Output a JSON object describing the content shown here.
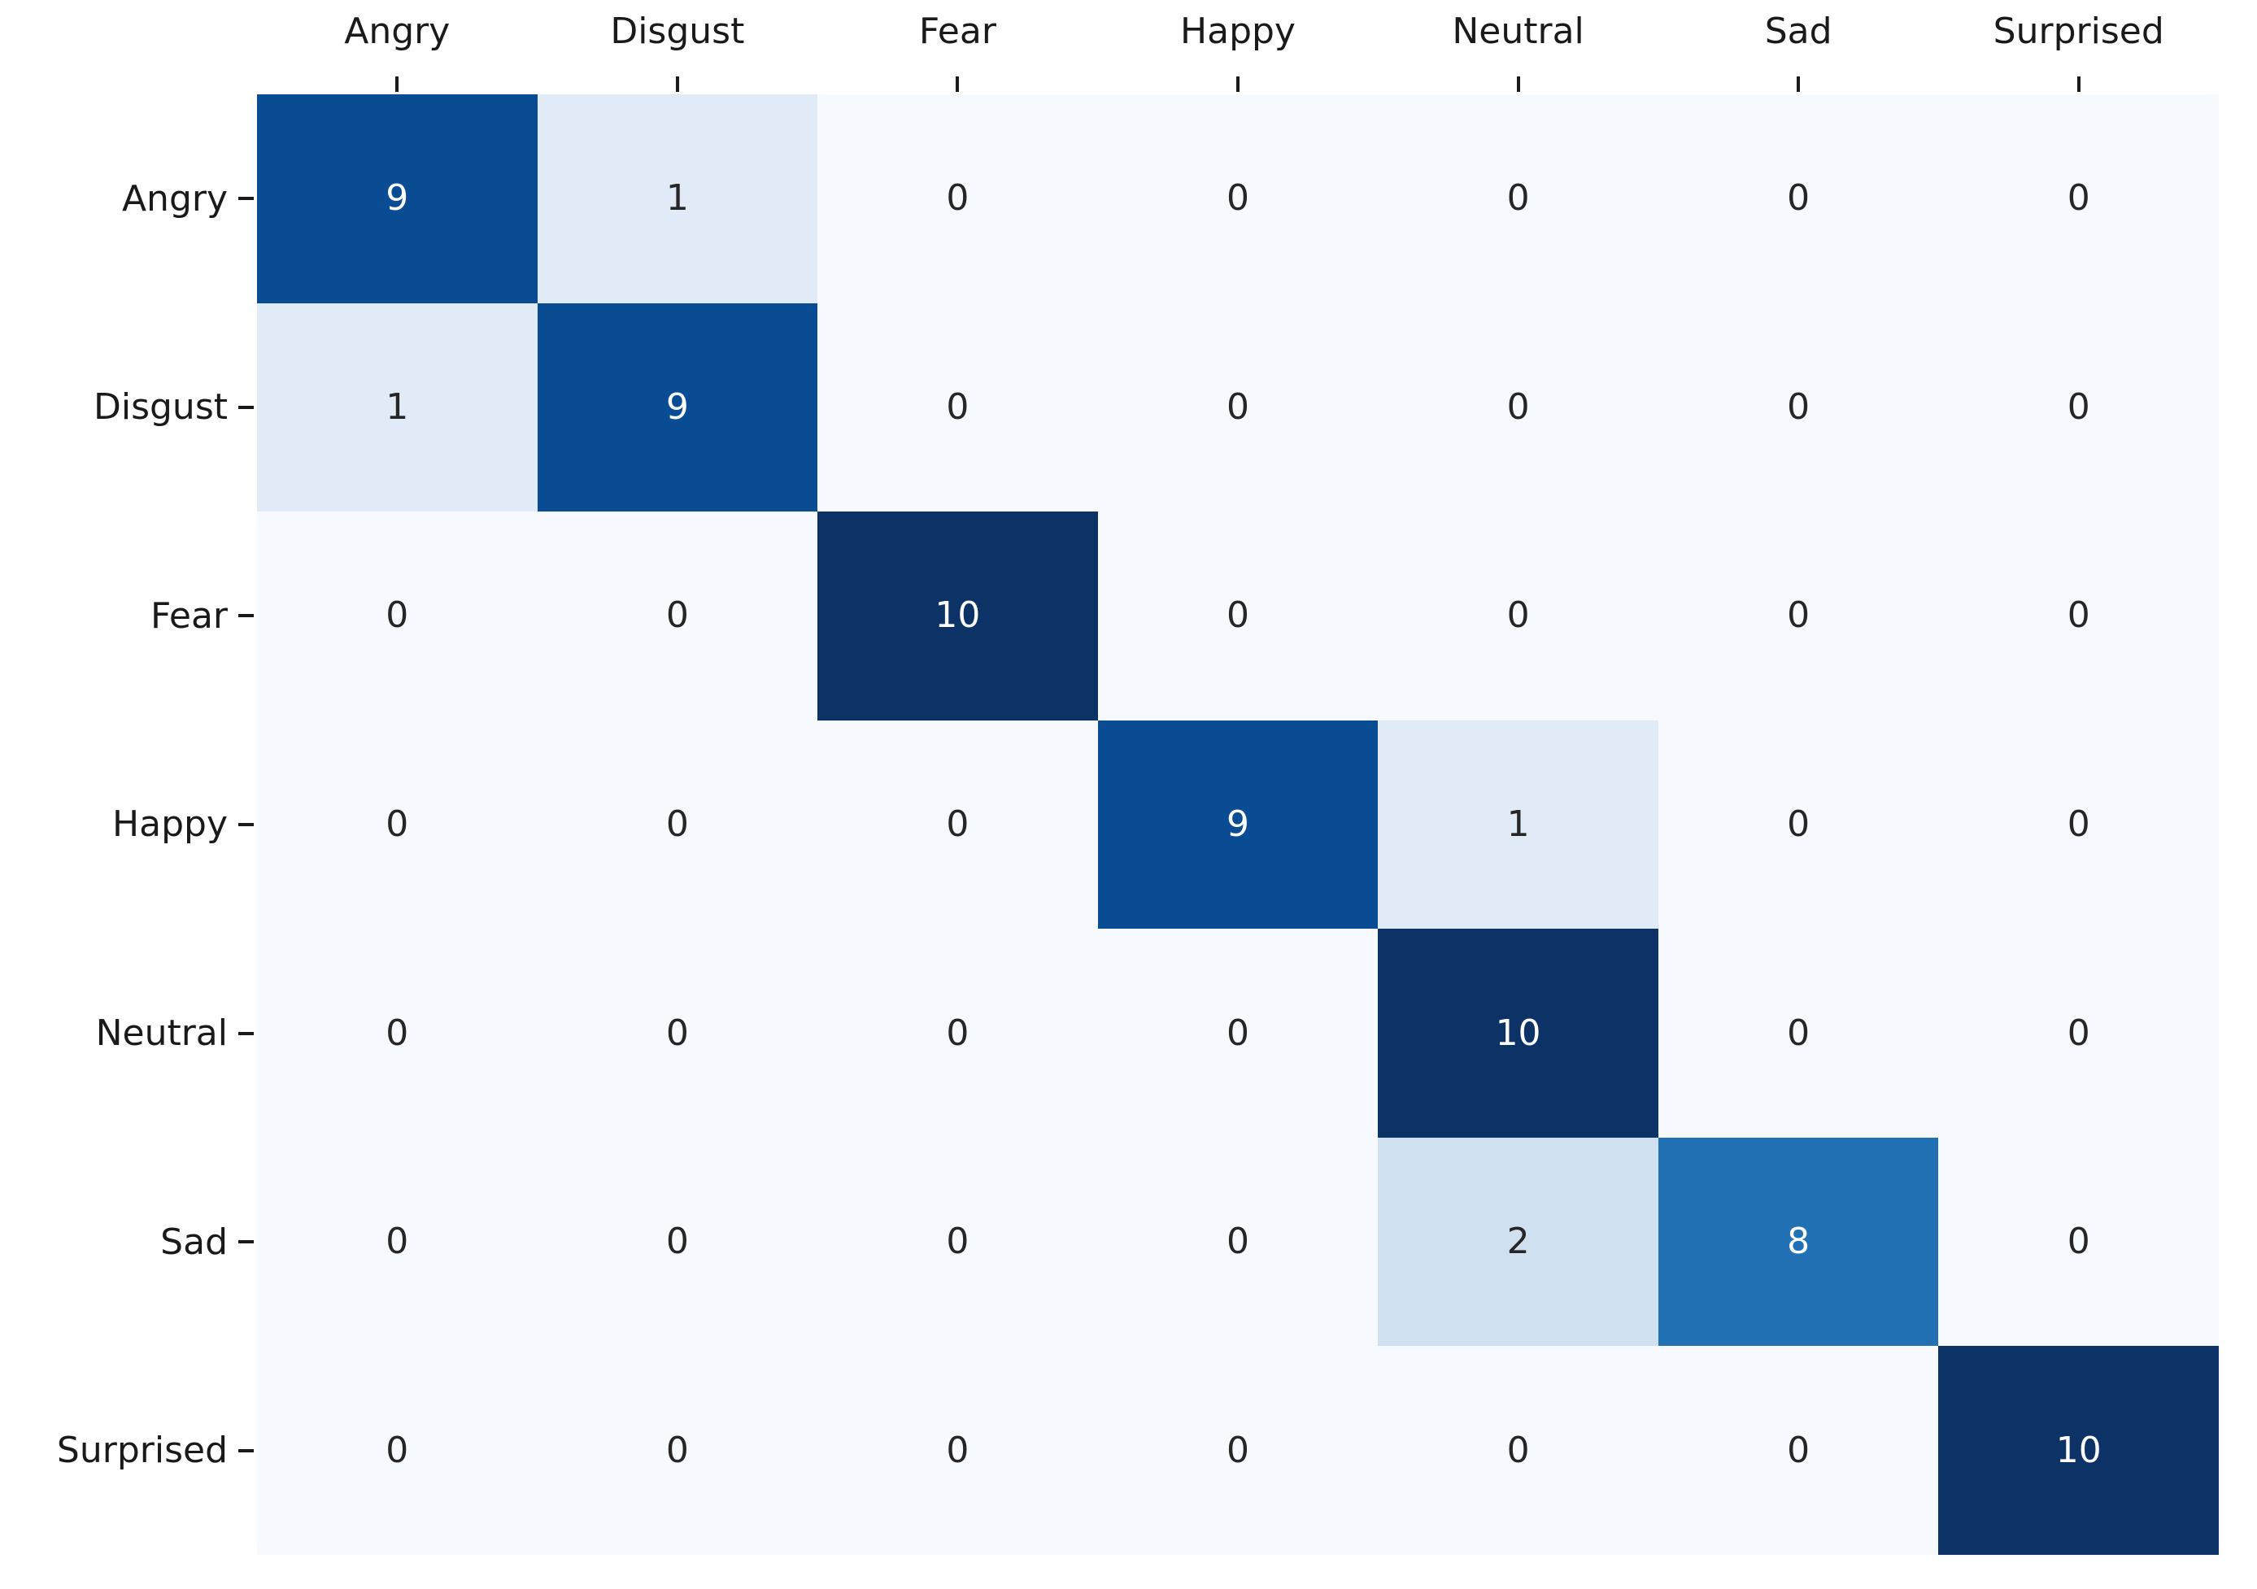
{
  "chart_data": {
    "type": "heatmap",
    "description": "confusion-matrix",
    "row_labels": [
      "Angry",
      "Disgust",
      "Fear",
      "Happy",
      "Neutral",
      "Sad",
      "Surprised"
    ],
    "col_labels": [
      "Angry",
      "Disgust",
      "Fear",
      "Happy",
      "Neutral",
      "Sad",
      "Surprised"
    ],
    "matrix": [
      [
        9,
        1,
        0,
        0,
        0,
        0,
        0
      ],
      [
        1,
        9,
        0,
        0,
        0,
        0,
        0
      ],
      [
        0,
        0,
        10,
        0,
        0,
        0,
        0
      ],
      [
        0,
        0,
        0,
        9,
        1,
        0,
        0
      ],
      [
        0,
        0,
        0,
        0,
        10,
        0,
        0
      ],
      [
        0,
        0,
        0,
        0,
        2,
        8,
        0
      ],
      [
        0,
        0,
        0,
        0,
        0,
        0,
        10
      ]
    ],
    "colormap": "Blues",
    "vmin": 0,
    "vmax": 10,
    "annotated": true,
    "grid_lines": false,
    "legend": false,
    "tick_color": "#1a1a1a",
    "label_color": "#1a1a1a",
    "value_styles": {
      "0": {
        "bg": "#f6f9fe",
        "fg": "#262626"
      },
      "1": {
        "bg": "#e0ebf7",
        "fg": "#262626"
      },
      "2": {
        "bg": "#cfe1f0",
        "fg": "#262626"
      },
      "8": {
        "bg": "#2171b4",
        "fg": "#ffffff"
      },
      "9": {
        "bg": "#0a4c94",
        "fg": "#ffffff"
      },
      "10": {
        "bg": "#0c3266",
        "fg": "#ffffff"
      }
    }
  }
}
